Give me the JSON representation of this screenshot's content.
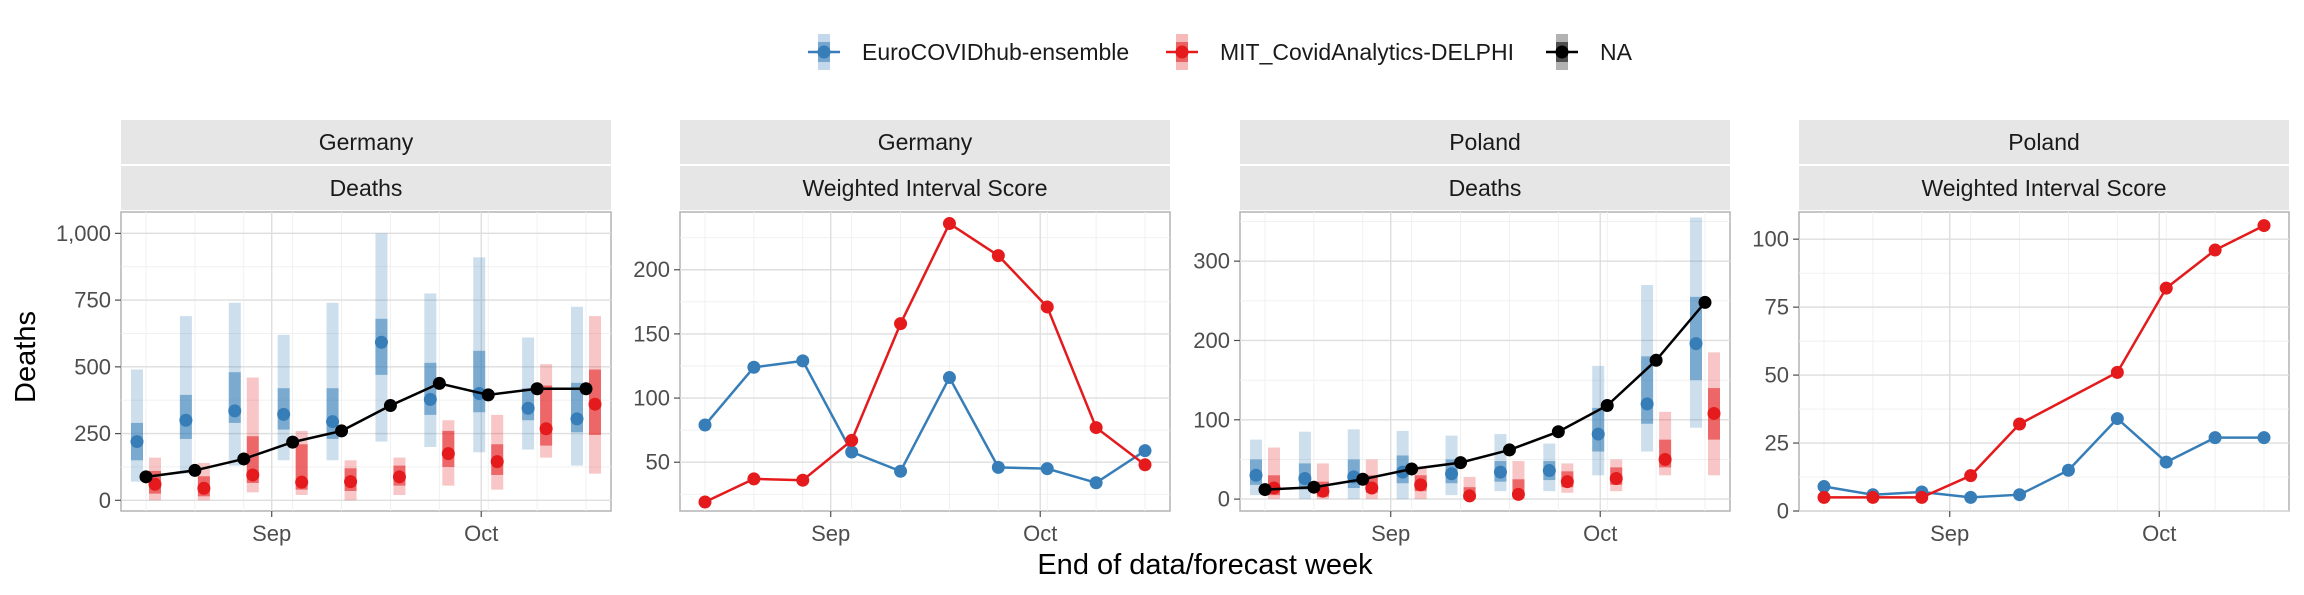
{
  "colors": {
    "ensemble": "#377eb8",
    "mit": "#e41a1c",
    "observed": "#000000"
  },
  "legend": {
    "items": [
      {
        "key": "ensemble",
        "label": "EuroCOVIDhub-ensemble"
      },
      {
        "key": "mit",
        "label": "MIT_CovidAnalytics-DELPHI"
      },
      {
        "key": "observed",
        "label": "NA"
      }
    ]
  },
  "axes": {
    "xlabel": "End of data/forecast week",
    "ylabel": "Deaths"
  },
  "chart_data": [
    {
      "type": "line",
      "location": "Germany",
      "target": "Deaths",
      "x": [
        "2021-08-14",
        "2021-08-21",
        "2021-08-28",
        "2021-09-04",
        "2021-09-11",
        "2021-09-18",
        "2021-09-25",
        "2021-10-02",
        "2021-10-09",
        "2021-10-16"
      ],
      "x_ticks": [
        "Sep",
        "Oct"
      ],
      "ylim": [
        -40,
        1080
      ],
      "y_ticks": [
        0,
        250,
        500,
        750,
        1000
      ],
      "y_tick_labels": [
        "0",
        "250",
        "500",
        "750",
        "1,000"
      ],
      "observed": [
        88,
        112,
        155,
        218,
        260,
        355,
        438,
        395,
        418,
        418
      ],
      "series": [
        {
          "name": "EuroCOVIDhub-ensemble",
          "key": "ensemble",
          "median": [
            220,
            300,
            335,
            322,
            295,
            592,
            378,
            400,
            345,
            305
          ],
          "q25": [
            150,
            230,
            290,
            265,
            230,
            470,
            320,
            330,
            300,
            255
          ],
          "q75": [
            290,
            395,
            480,
            420,
            420,
            680,
            515,
            560,
            420,
            440
          ],
          "q025": [
            70,
            100,
            130,
            150,
            150,
            220,
            200,
            180,
            190,
            130
          ],
          "q975": [
            490,
            690,
            740,
            620,
            740,
            1000,
            775,
            910,
            610,
            725
          ]
        },
        {
          "name": "MIT_CovidAnalytics-DELPHI",
          "key": "mit",
          "median": [
            60,
            45,
            95,
            68,
            70,
            88,
            175,
            145,
            268,
            360
          ],
          "q25": [
            25,
            15,
            65,
            40,
            35,
            55,
            125,
            95,
            205,
            245
          ],
          "q75": [
            110,
            90,
            240,
            210,
            120,
            130,
            260,
            210,
            430,
            490
          ],
          "q025": [
            0,
            0,
            30,
            20,
            0,
            20,
            55,
            40,
            160,
            100
          ],
          "q975": [
            160,
            140,
            460,
            260,
            150,
            160,
            300,
            320,
            510,
            690
          ]
        }
      ]
    },
    {
      "type": "line",
      "location": "Germany",
      "target": "Weighted Interval Score",
      "x": [
        "2021-08-14",
        "2021-08-21",
        "2021-08-28",
        "2021-09-04",
        "2021-09-11",
        "2021-09-18",
        "2021-09-25",
        "2021-10-02",
        "2021-10-09",
        "2021-10-16"
      ],
      "x_ticks": [
        "Sep",
        "Oct"
      ],
      "ylim": [
        12,
        245
      ],
      "y_ticks": [
        50,
        100,
        150,
        200
      ],
      "y_tick_labels": [
        "50",
        "100",
        "150",
        "200"
      ],
      "series": [
        {
          "name": "EuroCOVIDhub-ensemble",
          "key": "ensemble",
          "values": [
            79,
            124,
            129,
            58,
            43,
            116,
            46,
            45,
            34,
            59
          ]
        },
        {
          "name": "MIT_CovidAnalytics-DELPHI",
          "key": "mit",
          "values": [
            19,
            37,
            36,
            67,
            158,
            236,
            211,
            171,
            77,
            48
          ]
        }
      ]
    },
    {
      "type": "line",
      "location": "Poland",
      "target": "Deaths",
      "x": [
        "2021-08-14",
        "2021-08-21",
        "2021-08-28",
        "2021-09-04",
        "2021-09-11",
        "2021-09-18",
        "2021-09-25",
        "2021-10-02",
        "2021-10-09",
        "2021-10-16"
      ],
      "x_ticks": [
        "Sep",
        "Oct"
      ],
      "ylim": [
        -15,
        362
      ],
      "y_ticks": [
        0,
        100,
        200,
        300
      ],
      "y_tick_labels": [
        "0",
        "100",
        "200",
        "300"
      ],
      "observed": [
        12,
        15,
        25,
        38,
        46,
        62,
        85,
        118,
        175,
        248
      ],
      "series": [
        {
          "name": "EuroCOVIDhub-ensemble",
          "key": "ensemble",
          "median": [
            30,
            26,
            28,
            34,
            32,
            34,
            36,
            82,
            120,
            196
          ],
          "q25": [
            18,
            12,
            14,
            20,
            20,
            22,
            24,
            60,
            95,
            150
          ],
          "q75": [
            50,
            45,
            50,
            55,
            50,
            48,
            48,
            115,
            180,
            255
          ],
          "q025": [
            5,
            0,
            0,
            0,
            5,
            10,
            10,
            30,
            60,
            90
          ],
          "q975": [
            75,
            85,
            88,
            86,
            80,
            82,
            70,
            168,
            270,
            355
          ]
        },
        {
          "name": "MIT_CovidAnalytics-DELPHI",
          "key": "mit",
          "median": [
            14,
            10,
            14,
            18,
            4,
            6,
            22,
            26,
            50,
            108
          ],
          "q25": [
            5,
            3,
            8,
            10,
            0,
            2,
            15,
            18,
            40,
            75
          ],
          "q75": [
            30,
            22,
            30,
            30,
            15,
            25,
            35,
            40,
            75,
            140
          ],
          "q025": [
            0,
            0,
            0,
            0,
            0,
            0,
            8,
            10,
            30,
            30
          ],
          "q975": [
            65,
            45,
            50,
            40,
            28,
            48,
            45,
            50,
            110,
            185
          ]
        }
      ]
    },
    {
      "type": "line",
      "location": "Poland",
      "target": "Weighted Interval Score",
      "x": [
        "2021-08-14",
        "2021-08-21",
        "2021-08-28",
        "2021-09-04",
        "2021-09-11",
        "2021-09-18",
        "2021-09-25",
        "2021-10-02",
        "2021-10-09",
        "2021-10-16"
      ],
      "x_ticks": [
        "Sep",
        "Oct"
      ],
      "ylim": [
        0,
        110
      ],
      "y_ticks": [
        0,
        25,
        50,
        75,
        100
      ],
      "y_tick_labels": [
        "0",
        "25",
        "50",
        "75",
        "100"
      ],
      "series": [
        {
          "name": "EuroCOVIDhub-ensemble",
          "key": "ensemble",
          "values": [
            9,
            6,
            7,
            5,
            6,
            15,
            34,
            18,
            27,
            27
          ]
        },
        {
          "name": "MIT_CovidAnalytics-DELPHI",
          "key": "mit",
          "values": [
            5,
            5,
            5,
            13,
            32,
            null,
            51,
            82,
            96,
            105
          ]
        }
      ]
    }
  ]
}
